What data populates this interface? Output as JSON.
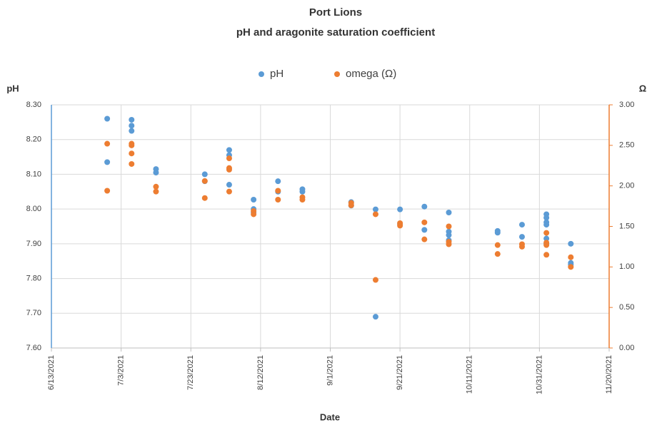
{
  "chart_data": {
    "type": "scatter",
    "title": "Port Lions",
    "subtitle": "pH and aragonite saturation coefficient",
    "x_label": "Date",
    "y_label": "pH",
    "y2_label": "Ω",
    "grid": true,
    "legend": "top",
    "xlim": [
      "6/13/2021",
      "11/20/2021"
    ],
    "xticks": [
      "6/13/2021",
      "7/3/2021",
      "7/23/2021",
      "8/12/2021",
      "9/1/2021",
      "9/21/2021",
      "10/11/2021",
      "10/31/2021",
      "11/20/2021"
    ],
    "ylim": [
      7.6,
      8.3
    ],
    "yticks": [
      {
        "value": 7.6,
        "label": "7.60"
      },
      {
        "value": 7.7,
        "label": "7.70"
      },
      {
        "value": 7.8,
        "label": "7.80"
      },
      {
        "value": 7.9,
        "label": "7.90"
      },
      {
        "value": 8.0,
        "label": "8.00"
      },
      {
        "value": 8.1,
        "label": "8.10"
      },
      {
        "value": 8.2,
        "label": "8.20"
      },
      {
        "value": 8.3,
        "label": "8.30"
      }
    ],
    "y2lim": [
      0,
      3
    ],
    "y2ticks": [
      {
        "value": 0,
        "label": "0.00"
      },
      {
        "value": 0.5,
        "label": "0.50"
      },
      {
        "value": 1,
        "label": "1.00"
      },
      {
        "value": 1.5,
        "label": "1.50"
      },
      {
        "value": 2,
        "label": "2.00"
      },
      {
        "value": 2.5,
        "label": "2.50"
      },
      {
        "value": 3,
        "label": "3.00"
      }
    ],
    "series": [
      {
        "name": "pH",
        "color": "#5b9bd5",
        "axis": "y",
        "x": [
          "6/29/2021",
          "6/29/2021",
          "7/6/2021",
          "7/6/2021",
          "7/6/2021",
          "7/13/2021",
          "7/13/2021",
          "7/27/2021",
          "7/27/2021",
          "8/3/2021",
          "8/3/2021",
          "8/3/2021",
          "8/10/2021",
          "8/10/2021",
          "8/10/2021",
          "8/17/2021",
          "8/17/2021",
          "8/24/2021",
          "8/24/2021",
          "9/7/2021",
          "9/7/2021",
          "9/14/2021",
          "9/14/2021",
          "9/21/2021",
          "9/21/2021",
          "9/28/2021",
          "9/28/2021",
          "10/5/2021",
          "10/5/2021",
          "10/5/2021",
          "10/5/2021",
          "10/19/2021",
          "10/19/2021",
          "10/26/2021",
          "10/26/2021",
          "11/2/2021",
          "11/2/2021",
          "11/2/2021",
          "11/2/2021",
          "11/2/2021",
          "11/2/2021",
          "11/9/2021",
          "11/9/2021",
          "11/9/2021"
        ],
        "values": [
          8.26,
          8.135,
          8.257,
          8.24,
          8.225,
          8.115,
          8.105,
          8.1,
          8.08,
          8.17,
          8.155,
          8.07,
          8.027,
          8.0,
          7.99,
          8.08,
          8.05,
          8.057,
          8.05,
          8.02,
          8.01,
          7.999,
          7.69,
          7.999,
          7.957,
          8.007,
          7.94,
          7.99,
          7.935,
          7.925,
          7.91,
          7.937,
          7.932,
          7.955,
          7.92,
          7.985,
          7.975,
          7.962,
          7.955,
          7.915,
          7.9,
          7.9,
          7.845,
          7.84
        ]
      },
      {
        "name": "omega (Ω)",
        "color": "#ed7d31",
        "axis": "y2",
        "x": [
          "6/29/2021",
          "6/29/2021",
          "7/6/2021",
          "7/6/2021",
          "7/6/2021",
          "7/6/2021",
          "7/13/2021",
          "7/13/2021",
          "7/27/2021",
          "7/27/2021",
          "8/3/2021",
          "8/3/2021",
          "8/3/2021",
          "8/3/2021",
          "8/10/2021",
          "8/10/2021",
          "8/17/2021",
          "8/17/2021",
          "8/24/2021",
          "8/24/2021",
          "9/7/2021",
          "9/7/2021",
          "9/14/2021",
          "9/14/2021",
          "9/21/2021",
          "9/21/2021",
          "9/28/2021",
          "9/28/2021",
          "10/5/2021",
          "10/5/2021",
          "10/5/2021",
          "10/19/2021",
          "10/19/2021",
          "10/26/2021",
          "10/26/2021",
          "11/2/2021",
          "11/2/2021",
          "11/2/2021",
          "11/2/2021",
          "11/9/2021",
          "11/9/2021"
        ],
        "values": [
          2.52,
          1.94,
          2.52,
          2.5,
          2.4,
          2.27,
          1.99,
          1.93,
          2.06,
          1.85,
          2.34,
          2.22,
          2.2,
          1.93,
          1.69,
          1.65,
          1.94,
          1.83,
          1.86,
          1.83,
          1.79,
          1.76,
          1.65,
          0.84,
          1.54,
          1.51,
          1.55,
          1.34,
          1.5,
          1.31,
          1.28,
          1.27,
          1.16,
          1.28,
          1.25,
          1.42,
          1.3,
          1.27,
          1.15,
          1.12,
          1.0
        ]
      }
    ]
  }
}
